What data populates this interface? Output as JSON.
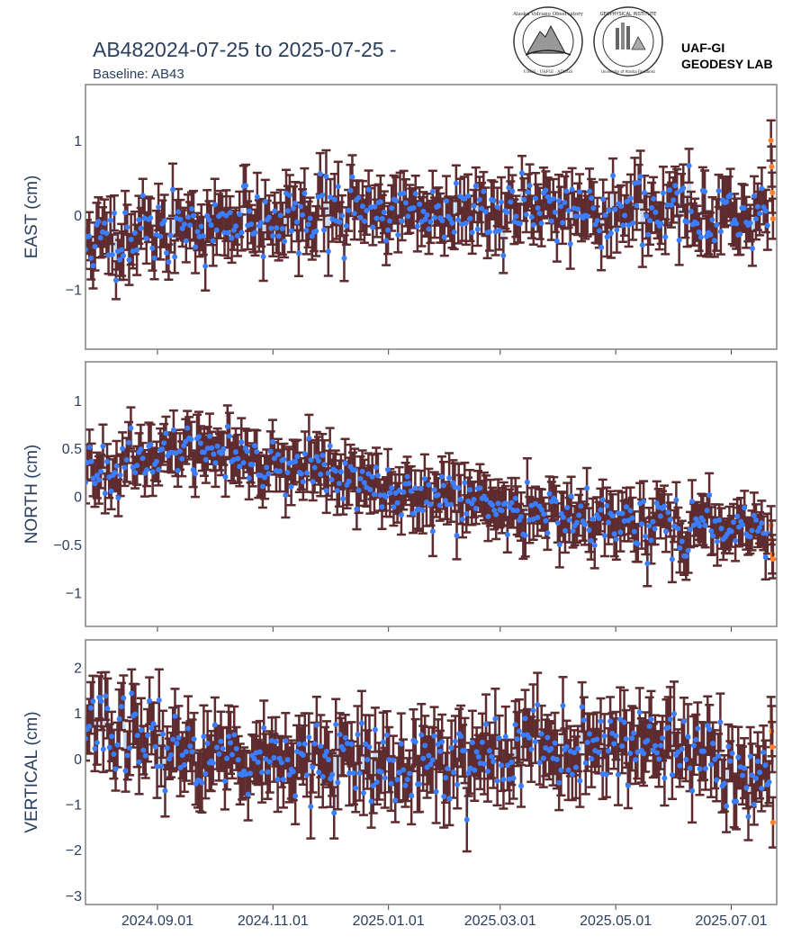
{
  "header": {
    "title": "AB482024-07-25 to 2025-07-25 -",
    "subtitle": "Baseline: AB43",
    "lab_line1": "UAF-GI",
    "lab_line2": "GEODESY LAB",
    "logo1_text": "Alaska Volcano Observatory",
    "logo1_sub": "USGS · UAFGI · ADGGS",
    "logo2_text": "GEOPHYSICAL INSTITUTE",
    "logo2_sub": "University of Alaska Fairbanks"
  },
  "colors": {
    "point": "#3a7eff",
    "point_recent": "#ff7f2a",
    "errorbar": "#5e2b2e",
    "line": "#c7dcef",
    "frame": "#808080"
  },
  "chart_data": [
    {
      "type": "scatter",
      "ylabel": "EAST (cm)",
      "ylim": [
        -1.8,
        1.75
      ],
      "yticks": [
        -1,
        0,
        1
      ],
      "ytick_labels": [
        "−1",
        "0",
        "1"
      ],
      "trend": [
        [
          0,
          -0.4
        ],
        [
          40,
          -0.2
        ],
        [
          140,
          0.05
        ],
        [
          260,
          0.05
        ],
        [
          365,
          0.05
        ]
      ],
      "noise": 0.22,
      "err": 0.27,
      "seed": 11,
      "recent": [
        1.0,
        0.65,
        0.3,
        -0.05
      ]
    },
    {
      "type": "scatter",
      "ylabel": "NORTH (cm)",
      "ylim": [
        -1.35,
        1.4
      ],
      "yticks": [
        -1,
        -0.5,
        0,
        0.5,
        1
      ],
      "ytick_labels": [
        "−1",
        "−0.5",
        "0",
        "0.5",
        "1"
      ],
      "trend": [
        [
          0,
          0.3
        ],
        [
          40,
          0.45
        ],
        [
          110,
          0.3
        ],
        [
          180,
          0.0
        ],
        [
          260,
          -0.25
        ],
        [
          365,
          -0.35
        ]
      ],
      "noise": 0.14,
      "err": 0.2,
      "seed": 23,
      "recent": [
        -0.3,
        -0.45,
        -0.6,
        -0.65
      ]
    },
    {
      "type": "scatter",
      "ylabel": "VERTICAL (cm)",
      "ylim": [
        -3.2,
        2.6
      ],
      "yticks": [
        -3,
        -2,
        -1,
        0,
        1,
        2
      ],
      "ytick_labels": [
        "−3",
        "−2",
        "−1",
        "0",
        "1",
        "2"
      ],
      "trend": [
        [
          0,
          0.9
        ],
        [
          40,
          0.3
        ],
        [
          100,
          -0.1
        ],
        [
          170,
          -0.3
        ],
        [
          230,
          0.2
        ],
        [
          300,
          0.4
        ],
        [
          340,
          -0.2
        ],
        [
          365,
          -0.6
        ]
      ],
      "noise": 0.42,
      "err": 0.55,
      "seed": 37,
      "recent": [
        0.8,
        0.6,
        0.25,
        -1.4
      ]
    }
  ],
  "x_axis": {
    "start": "2024-07-25",
    "end": "2025-07-25",
    "ticks": [
      "2024-09-01",
      "2024-11-01",
      "2025-01-01",
      "2025-03-01",
      "2025-05-01",
      "2025-07-01"
    ],
    "tick_labels": [
      "2024.09.01",
      "2024.11.01",
      "2025.01.01",
      "2025.03.01",
      "2025.05.01",
      "2025.07.01"
    ]
  }
}
